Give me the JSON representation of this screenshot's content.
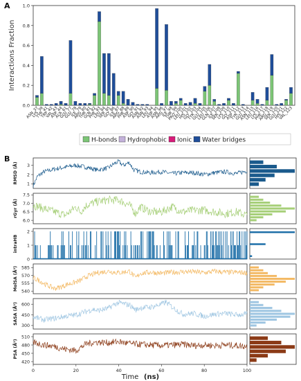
{
  "panel_labels": {
    "a": "A",
    "b": "B"
  },
  "colors": {
    "hbond": "#7cc576",
    "hydrophobic": "#c3b1da",
    "ionic": "#d81b7a",
    "water": "#1f4e9a",
    "rmsd": "#1a5a8c",
    "rgyr": "#a6cf78",
    "intrahb": "#1e6fa8",
    "molsa": "#f3b861",
    "sasa": "#9fc6e2",
    "psa": "#8b3a16"
  },
  "chart_data": [
    {
      "type": "bar",
      "stacked": true,
      "ylabel": "Interactions Fraction",
      "ylim": [
        0,
        1.0
      ],
      "yticks": [
        "0.0",
        "0.2",
        "0.4",
        "0.6",
        "0.8",
        "1.0"
      ],
      "categories": [
        "ASN_37",
        "LYS_39",
        "TYR_41",
        "TRP_42",
        "VAL_43",
        "ASP_44",
        "ALA_61",
        "GLU_77",
        "GLU_78",
        "ILE_79",
        "ARG_80",
        "THR_81",
        "GLN_82",
        "PHE_83",
        "LEU_84",
        "SER_85",
        "GLY_86",
        "ILE_87",
        "ARG_88",
        "PHE_89",
        "ASP_90",
        "GLY_91",
        "ASN_92",
        "ASN_93",
        "LEU_94",
        "ASP_95",
        "ASN_96",
        "ARG_97",
        "ILE_98",
        "THR_99",
        "PRO_100",
        "LEU_101",
        "HIS_102",
        "GLY_103",
        "TYR_104",
        "GLU_105",
        "LEU_106",
        "GLN_107",
        "ILE_108",
        "SER_109",
        "LYS_110",
        "GLY_111",
        "ASP_112",
        "TYR_113",
        "GLU_114",
        "ASN_115",
        "LEU_116",
        "LYS_117",
        "PHE_118",
        "ARG_119",
        "SER_120",
        "GLU_121",
        "HIS_122",
        "VAL_123"
      ],
      "series": [
        {
          "name": "H-bonds",
          "values": [
            0.08,
            0.12,
            0,
            0,
            0,
            0.01,
            0,
            0.12,
            0,
            0,
            0,
            0.01,
            0.1,
            0.84,
            0.12,
            0.1,
            0,
            0.1,
            0.02,
            0,
            0,
            0,
            0,
            0,
            0,
            0.17,
            0,
            0.15,
            0,
            0.02,
            0.05,
            0,
            0,
            0.02,
            0,
            0.14,
            0.2,
            0.04,
            0,
            0,
            0.05,
            0,
            0.32,
            0,
            0,
            0.05,
            0.02,
            0,
            0.05,
            0.3,
            0,
            0,
            0.05,
            0.12
          ]
        },
        {
          "name": "Hydrophobic",
          "values": [
            0,
            0,
            0,
            0,
            0,
            0,
            0,
            0,
            0,
            0,
            0,
            0,
            0,
            0,
            0,
            0,
            0,
            0,
            0,
            0,
            0,
            0,
            0,
            0,
            0,
            0,
            0,
            0,
            0,
            0,
            0,
            0,
            0,
            0,
            0,
            0,
            0,
            0,
            0,
            0,
            0,
            0,
            0,
            0,
            0,
            0,
            0,
            0,
            0,
            0,
            0,
            0,
            0,
            0
          ]
        },
        {
          "name": "Ionic",
          "values": [
            0,
            0,
            0,
            0,
            0,
            0,
            0,
            0,
            0,
            0,
            0,
            0,
            0,
            0,
            0,
            0,
            0,
            0,
            0,
            0,
            0,
            0,
            0,
            0,
            0,
            0,
            0,
            0,
            0,
            0,
            0,
            0,
            0,
            0,
            0,
            0,
            0,
            0,
            0,
            0,
            0,
            0,
            0,
            0,
            0,
            0,
            0,
            0,
            0,
            0,
            0,
            0,
            0,
            0
          ]
        },
        {
          "name": "Water bridges",
          "values": [
            0.02,
            0.37,
            0.01,
            0.01,
            0.02,
            0.03,
            0.02,
            0.53,
            0.04,
            0.02,
            0.02,
            0.01,
            0.02,
            0.1,
            0.4,
            0.42,
            0.32,
            0.04,
            0.12,
            0.06,
            0.03,
            0.01,
            0.01,
            0.01,
            0,
            0.8,
            0.02,
            0.66,
            0.04,
            0.02,
            0.02,
            0.02,
            0.03,
            0.05,
            0.02,
            0.05,
            0.21,
            0.02,
            0.01,
            0.02,
            0.02,
            0.02,
            0.02,
            0.01,
            0,
            0.08,
            0.04,
            0.01,
            0.13,
            0.21,
            0.01,
            0.02,
            0.01,
            0.06
          ]
        }
      ],
      "legend": [
        "H-bonds",
        "Hydrophobic",
        "Ionic",
        "Water bridges"
      ],
      "legend_placement": "bottom-center"
    },
    {
      "type": "line",
      "xlabel": "Time",
      "xlabel_unit": "(ns)",
      "xlim": [
        0,
        100
      ],
      "xticks": [
        "0",
        "20",
        "40",
        "60",
        "80",
        "100"
      ],
      "series": [
        {
          "name": "RMSD (Å)",
          "ylim": [
            0.5,
            3.8
          ],
          "yticks": [
            "1",
            "2",
            "3"
          ],
          "points": [
            [
              0,
              0.8
            ],
            [
              2,
              1.8
            ],
            [
              5,
              2.3
            ],
            [
              10,
              2.6
            ],
            [
              15,
              2.8
            ],
            [
              20,
              3.0
            ],
            [
              22,
              2.9
            ],
            [
              25,
              2.8
            ],
            [
              28,
              2.6
            ],
            [
              30,
              2.5
            ],
            [
              35,
              2.7
            ],
            [
              38,
              3.2
            ],
            [
              40,
              3.4
            ],
            [
              42,
              3.0
            ],
            [
              45,
              3.3
            ],
            [
              47,
              2.5
            ],
            [
              50,
              2.3
            ],
            [
              55,
              2.2
            ],
            [
              60,
              2.3
            ],
            [
              65,
              2.1
            ],
            [
              70,
              2.2
            ],
            [
              75,
              2.2
            ],
            [
              80,
              2.0
            ],
            [
              85,
              2.2
            ],
            [
              90,
              2.3
            ],
            [
              95,
              2.1
            ],
            [
              100,
              2.4
            ]
          ],
          "noise": 0.25,
          "hist": [
            0.2,
            0.35,
            0.55,
            1.0,
            0.6,
            0.3
          ]
        },
        {
          "name": "rGyr (Å)",
          "ylim": [
            5.8,
            7.6
          ],
          "yticks": [
            "6.0",
            "6.5",
            "7.0",
            "7.5"
          ],
          "points": [
            [
              0,
              6.9
            ],
            [
              5,
              6.7
            ],
            [
              10,
              6.5
            ],
            [
              15,
              6.3
            ],
            [
              20,
              6.8
            ],
            [
              22,
              6.5
            ],
            [
              25,
              6.9
            ],
            [
              30,
              7.1
            ],
            [
              35,
              7.2
            ],
            [
              40,
              7.2
            ],
            [
              45,
              6.9
            ],
            [
              48,
              6.4
            ],
            [
              50,
              6.8
            ],
            [
              55,
              6.5
            ],
            [
              60,
              6.5
            ],
            [
              65,
              6.8
            ],
            [
              70,
              6.5
            ],
            [
              75,
              6.6
            ],
            [
              80,
              6.6
            ],
            [
              85,
              6.5
            ],
            [
              90,
              6.4
            ],
            [
              95,
              6.5
            ],
            [
              100,
              6.3
            ]
          ],
          "noise": 0.25,
          "hist": [
            0.15,
            0.3,
            0.5,
            0.8,
            1.0,
            0.7,
            0.45,
            0.3,
            0.2
          ]
        },
        {
          "name": "intraHB",
          "ylim": [
            0,
            2.2
          ],
          "yticks": [
            "0",
            "1",
            "2"
          ],
          "hist": [
            0.05,
            0.35,
            1.0
          ]
        },
        {
          "name": "MolSA (Å²)",
          "ylim": [
            535,
            592
          ],
          "yticks": [
            "540",
            "555",
            "570",
            "585"
          ],
          "points": [
            [
              0,
              565
            ],
            [
              3,
              560
            ],
            [
              6,
              552
            ],
            [
              10,
              545
            ],
            [
              13,
              548
            ],
            [
              16,
              553
            ],
            [
              19,
              556
            ],
            [
              22,
              560
            ],
            [
              25,
              568
            ],
            [
              30,
              575
            ],
            [
              35,
              578
            ],
            [
              40,
              575
            ],
            [
              45,
              578
            ],
            [
              48,
              565
            ],
            [
              50,
              574
            ],
            [
              55,
              576
            ],
            [
              60,
              574
            ],
            [
              65,
              576
            ],
            [
              70,
              577
            ],
            [
              75,
              577
            ],
            [
              80,
              575
            ],
            [
              85,
              578
            ],
            [
              90,
              576
            ],
            [
              95,
              576
            ],
            [
              100,
              575
            ]
          ],
          "noise": 5,
          "hist": [
            0.2,
            0.3,
            0.55,
            0.8,
            1.0,
            0.6,
            0.4,
            0.3,
            0.2
          ]
        },
        {
          "name": "SASA (Å²)",
          "ylim": [
            250,
            680
          ],
          "yticks": [
            "300",
            "450",
            "600"
          ],
          "points": [
            [
              0,
              420
            ],
            [
              5,
              380
            ],
            [
              10,
              400
            ],
            [
              15,
              430
            ],
            [
              20,
              450
            ],
            [
              25,
              500
            ],
            [
              28,
              530
            ],
            [
              30,
              510
            ],
            [
              35,
              540
            ],
            [
              38,
              600
            ],
            [
              40,
              620
            ],
            [
              45,
              590
            ],
            [
              48,
              520
            ],
            [
              50,
              550
            ],
            [
              55,
              560
            ],
            [
              60,
              600
            ],
            [
              62,
              630
            ],
            [
              65,
              560
            ],
            [
              70,
              460
            ],
            [
              75,
              470
            ],
            [
              80,
              430
            ],
            [
              85,
              460
            ],
            [
              90,
              470
            ],
            [
              95,
              450
            ],
            [
              100,
              460
            ]
          ],
          "noise": 40,
          "hist": [
            0.15,
            0.35,
            0.6,
            0.9,
            1.0,
            0.7,
            0.5,
            0.3,
            0.2
          ]
        },
        {
          "name": "PSA (Å²)",
          "ylim": [
            410,
            520
          ],
          "yticks": [
            "420",
            "450",
            "480",
            "510"
          ],
          "points": [
            [
              0,
              490
            ],
            [
              5,
              480
            ],
            [
              10,
              475
            ],
            [
              15,
              465
            ],
            [
              20,
              460
            ],
            [
              22,
              470
            ],
            [
              25,
              485
            ],
            [
              30,
              490
            ],
            [
              35,
              488
            ],
            [
              40,
              492
            ],
            [
              45,
              485
            ],
            [
              50,
              482
            ],
            [
              55,
              480
            ],
            [
              60,
              478
            ],
            [
              65,
              480
            ],
            [
              70,
              482
            ],
            [
              75,
              478
            ],
            [
              80,
              480
            ],
            [
              85,
              478
            ],
            [
              90,
              480
            ],
            [
              95,
              478
            ],
            [
              100,
              475
            ]
          ],
          "noise": 12,
          "hist": [
            0.15,
            0.4,
            0.8,
            1.0,
            0.7,
            0.4
          ]
        }
      ]
    }
  ]
}
